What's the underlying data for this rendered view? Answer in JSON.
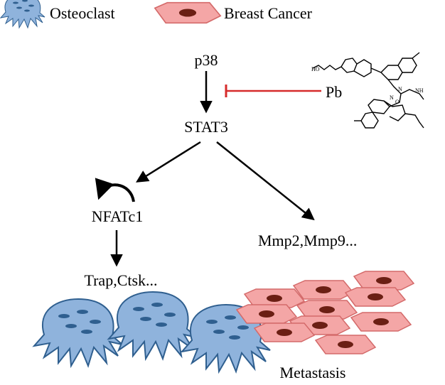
{
  "legend": {
    "osteoclast_label": "Osteoclast",
    "breast_cancer_label": "Breast Cancer"
  },
  "nodes": {
    "p38": "p38",
    "pb": "Pb",
    "stat3": "STAT3",
    "nfatc1": "NFATc1",
    "mmp": "Mmp2,Mmp9...",
    "trap": "Trap,Ctsk...",
    "metastasis": "Metastasis"
  },
  "colors": {
    "osteoclast_fill": "#8fb3dc",
    "osteoclast_stroke": "#2f5f8f",
    "osteoclast_nucleus": "#2f5f8f",
    "cancer_fill": "#f4a6a6",
    "cancer_stroke": "#d46a6a",
    "cancer_nucleus": "#6b1f14",
    "inhibition": "#d62b2b",
    "arrow": "#000000"
  }
}
